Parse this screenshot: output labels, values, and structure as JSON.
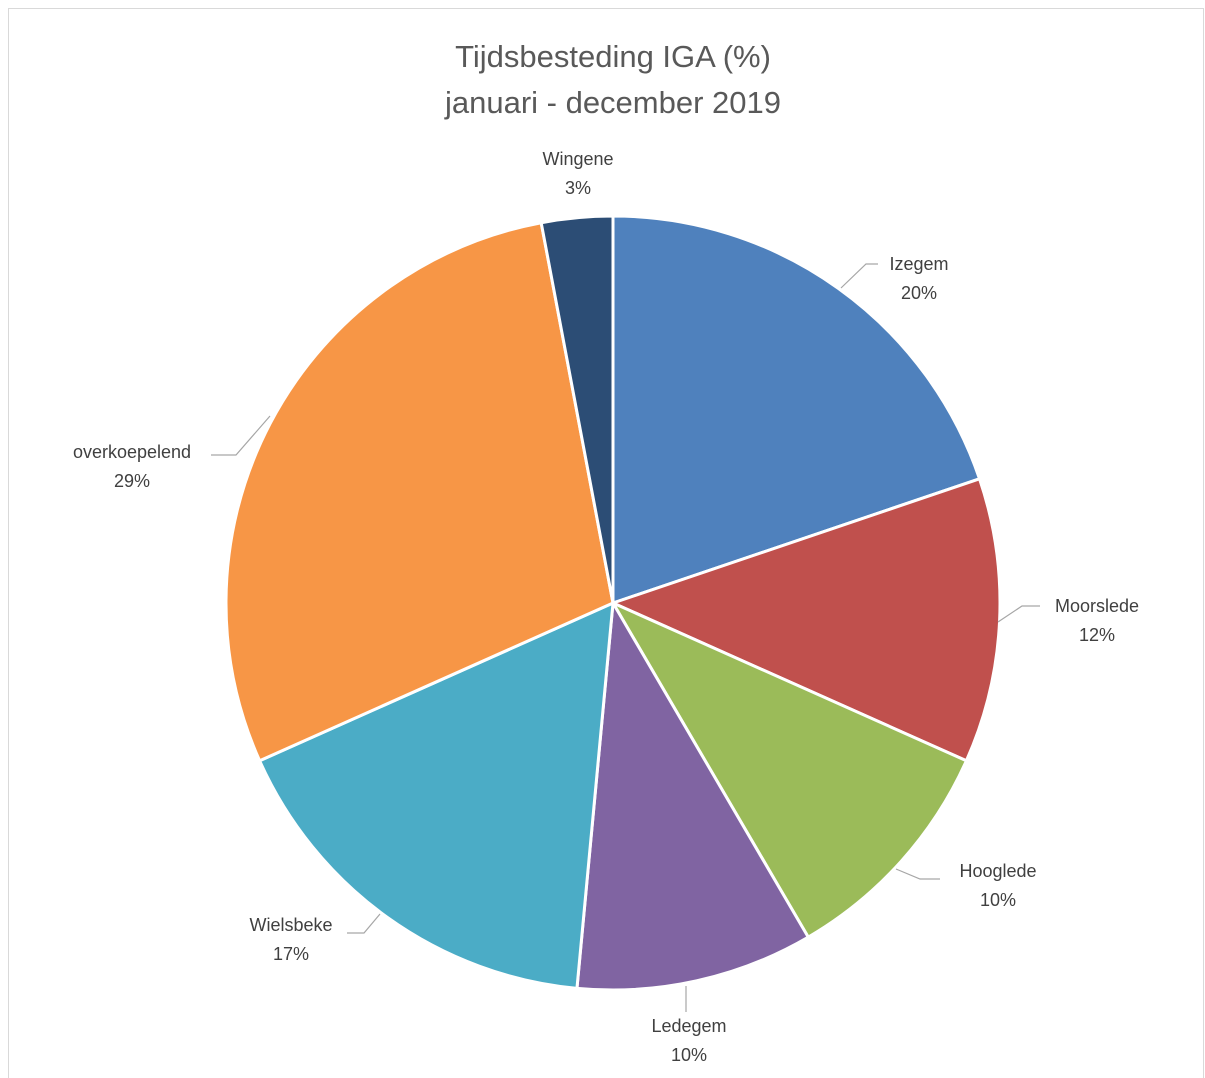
{
  "chart_data": {
    "type": "pie",
    "title": "Tijdsbesteding IGA (%)",
    "subtitle": "januari - december 2019",
    "slices": [
      {
        "label": "Izegem",
        "value": 20,
        "display": "20%",
        "color": "#4f81bd"
      },
      {
        "label": "Moorslede",
        "value": 12,
        "display": "12%",
        "color": "#c0504d"
      },
      {
        "label": "Hooglede",
        "value": 10,
        "display": "10%",
        "color": "#9bbb59"
      },
      {
        "label": "Ledegem",
        "value": 10,
        "display": "10%",
        "color": "#8064a2"
      },
      {
        "label": "Wielsbeke",
        "value": 17,
        "display": "17%",
        "color": "#4bacc6"
      },
      {
        "label": "overkoepelend",
        "value": 29,
        "display": "29%",
        "color": "#f79646"
      },
      {
        "label": "Wingene",
        "value": 3,
        "display": "3%",
        "color": "#2c4d75"
      }
    ],
    "legend": "none",
    "data_labels": "outside-with-leader-lines"
  }
}
